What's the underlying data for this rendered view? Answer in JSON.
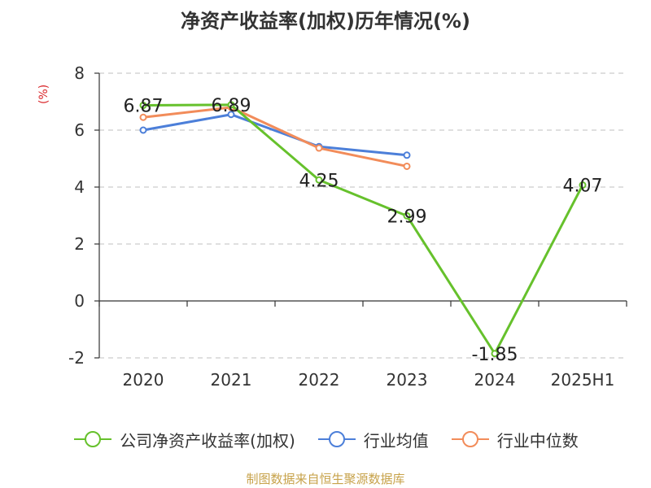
{
  "title": "净资产收益率(加权)历年情况(%)",
  "unit_label": "(%)",
  "source": "制图数据来自恒生聚源数据库",
  "colors": {
    "company": "#66c12c",
    "industry_avg": "#4c7fd9",
    "industry_median": "#f28c5a",
    "unit": "#d9262a",
    "source": "#c7a24a",
    "grid": "#cccccc",
    "axis": "#333333"
  },
  "legend": [
    {
      "label": "公司净资产收益率(加权)",
      "color": "#66c12c"
    },
    {
      "label": "行业均值",
      "color": "#4c7fd9"
    },
    {
      "label": "行业中位数",
      "color": "#f28c5a"
    }
  ],
  "chart_data": {
    "type": "line",
    "categories": [
      "2020",
      "2021",
      "2022",
      "2023",
      "2024",
      "2025H1"
    ],
    "ylim": [
      -2,
      8
    ],
    "yticks": [
      -2,
      0,
      2,
      4,
      6,
      8
    ],
    "grid": true,
    "legend_position": "bottom",
    "series": [
      {
        "name": "公司净资产收益率(加权)",
        "values": [
          6.87,
          6.89,
          4.25,
          2.99,
          -1.85,
          4.07
        ],
        "labels": [
          "6.87",
          "6.89",
          "4.25",
          "2.99",
          "-1.85",
          "4.07"
        ],
        "color": "#66c12c"
      },
      {
        "name": "行业均值",
        "values": [
          6.0,
          6.55,
          5.42,
          5.12,
          null,
          null
        ],
        "color": "#4c7fd9"
      },
      {
        "name": "行业中位数",
        "values": [
          6.45,
          6.8,
          5.37,
          4.73,
          null,
          null
        ],
        "color": "#f28c5a"
      }
    ]
  }
}
